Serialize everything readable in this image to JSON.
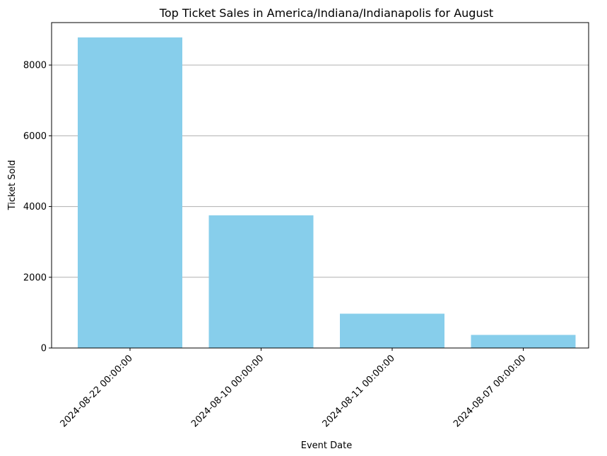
{
  "chart_data": {
    "type": "bar",
    "title": "Top Ticket Sales in America/Indiana/Indianapolis for August",
    "xlabel": "Event Date",
    "ylabel": "Ticket Sold",
    "categories": [
      "2024-08-22 00:00:00",
      "2024-08-10 00:00:00",
      "2024-08-11 00:00:00",
      "2024-08-07 00:00:00"
    ],
    "values": [
      8780,
      3750,
      970,
      370
    ],
    "ylim": [
      0,
      9200
    ],
    "yticks": [
      0,
      2000,
      4000,
      6000,
      8000
    ],
    "grid": "horizontal",
    "legend": "none",
    "bar_color": "#87ceeb",
    "grid_color": "#b0b0b0"
  }
}
